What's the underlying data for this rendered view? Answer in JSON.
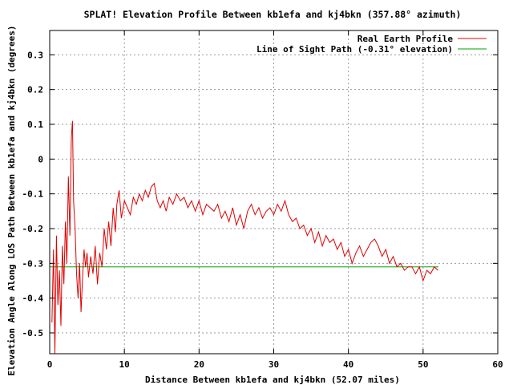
{
  "chart_data": {
    "type": "line",
    "title": "SPLAT! Elevation Profile Between kb1efa and kj4bkn (357.88° azimuth)",
    "xlabel": "Distance Between kb1efa and kj4bkn (52.07 miles)",
    "ylabel": "Elevation Angle Along LOS Path Between kb1efa and kj4bkn (degrees)",
    "xlim": [
      0,
      60
    ],
    "ylim": [
      -0.56,
      0.37
    ],
    "xticks": [
      0,
      10,
      20,
      30,
      40,
      50,
      60
    ],
    "yticks": [
      0.3,
      0.2,
      0.1,
      0,
      -0.1,
      -0.2,
      -0.3,
      -0.4,
      -0.5
    ],
    "ytick_labels": [
      "0.3",
      "0.2",
      "0.1",
      "0",
      "-0.1",
      "-0.2",
      "-0.3",
      "-0.4",
      "-0.5"
    ],
    "grid": true,
    "legend_position": "top-right",
    "series": [
      {
        "name": "Real Earth Profile",
        "color": "#e00000",
        "x": [
          0.3,
          0.5,
          0.7,
          0.9,
          1.1,
          1.3,
          1.5,
          1.7,
          1.9,
          2.1,
          2.3,
          2.5,
          2.7,
          2.9,
          3.05,
          3.2,
          3.4,
          3.6,
          3.8,
          4.0,
          4.2,
          4.4,
          4.6,
          4.8,
          5.0,
          5.2,
          5.5,
          5.8,
          6.1,
          6.4,
          6.7,
          7.0,
          7.3,
          7.6,
          7.9,
          8.2,
          8.5,
          8.8,
          9.0,
          9.3,
          9.6,
          10.0,
          10.4,
          10.8,
          11.2,
          11.6,
          12.0,
          12.4,
          12.8,
          13.2,
          13.6,
          14.0,
          14.4,
          14.8,
          15.2,
          15.6,
          16.0,
          16.5,
          17.0,
          17.5,
          18.0,
          18.5,
          19.0,
          19.5,
          20.0,
          20.5,
          21.0,
          21.5,
          22.0,
          22.5,
          23.0,
          23.5,
          24.0,
          24.5,
          25.0,
          25.5,
          26.0,
          26.5,
          27.0,
          27.5,
          28.0,
          28.5,
          29.0,
          29.5,
          30.0,
          30.5,
          31.0,
          31.5,
          32.0,
          32.5,
          33.0,
          33.5,
          34.0,
          34.5,
          35.0,
          35.5,
          36.0,
          36.5,
          37.0,
          37.5,
          38.0,
          38.5,
          39.0,
          39.5,
          40.0,
          40.5,
          41.0,
          41.5,
          42.0,
          42.5,
          43.0,
          43.5,
          44.0,
          44.5,
          45.0,
          45.5,
          46.0,
          46.5,
          47.0,
          47.5,
          48.0,
          48.5,
          49.0,
          49.5,
          50.0,
          50.5,
          51.0,
          51.5,
          52.0
        ],
        "y": [
          -0.47,
          -0.26,
          -0.56,
          -0.22,
          -0.42,
          -0.32,
          -0.48,
          -0.25,
          -0.36,
          -0.18,
          -0.3,
          -0.05,
          -0.22,
          0.06,
          0.11,
          -0.12,
          -0.2,
          -0.33,
          -0.4,
          -0.3,
          -0.44,
          -0.34,
          -0.26,
          -0.31,
          -0.27,
          -0.34,
          -0.28,
          -0.33,
          -0.25,
          -0.36,
          -0.27,
          -0.31,
          -0.2,
          -0.26,
          -0.18,
          -0.25,
          -0.14,
          -0.21,
          -0.13,
          -0.09,
          -0.17,
          -0.12,
          -0.14,
          -0.16,
          -0.11,
          -0.13,
          -0.1,
          -0.12,
          -0.09,
          -0.11,
          -0.08,
          -0.07,
          -0.12,
          -0.14,
          -0.12,
          -0.15,
          -0.11,
          -0.13,
          -0.1,
          -0.12,
          -0.11,
          -0.14,
          -0.12,
          -0.15,
          -0.12,
          -0.16,
          -0.13,
          -0.14,
          -0.15,
          -0.13,
          -0.17,
          -0.15,
          -0.18,
          -0.14,
          -0.19,
          -0.16,
          -0.2,
          -0.15,
          -0.13,
          -0.16,
          -0.14,
          -0.17,
          -0.15,
          -0.14,
          -0.16,
          -0.13,
          -0.15,
          -0.12,
          -0.16,
          -0.18,
          -0.17,
          -0.2,
          -0.19,
          -0.22,
          -0.2,
          -0.24,
          -0.21,
          -0.25,
          -0.22,
          -0.24,
          -0.23,
          -0.26,
          -0.24,
          -0.28,
          -0.26,
          -0.3,
          -0.27,
          -0.25,
          -0.28,
          -0.26,
          -0.24,
          -0.23,
          -0.25,
          -0.28,
          -0.26,
          -0.3,
          -0.28,
          -0.31,
          -0.3,
          -0.32,
          -0.31,
          -0.31,
          -0.33,
          -0.31,
          -0.35,
          -0.32,
          -0.33,
          -0.31,
          -0.32
        ]
      },
      {
        "name": "Line of Sight Path (-0.31° elevation)",
        "color": "#00a000",
        "x": [
          0,
          52.07
        ],
        "y": [
          -0.31,
          -0.31
        ]
      }
    ]
  }
}
